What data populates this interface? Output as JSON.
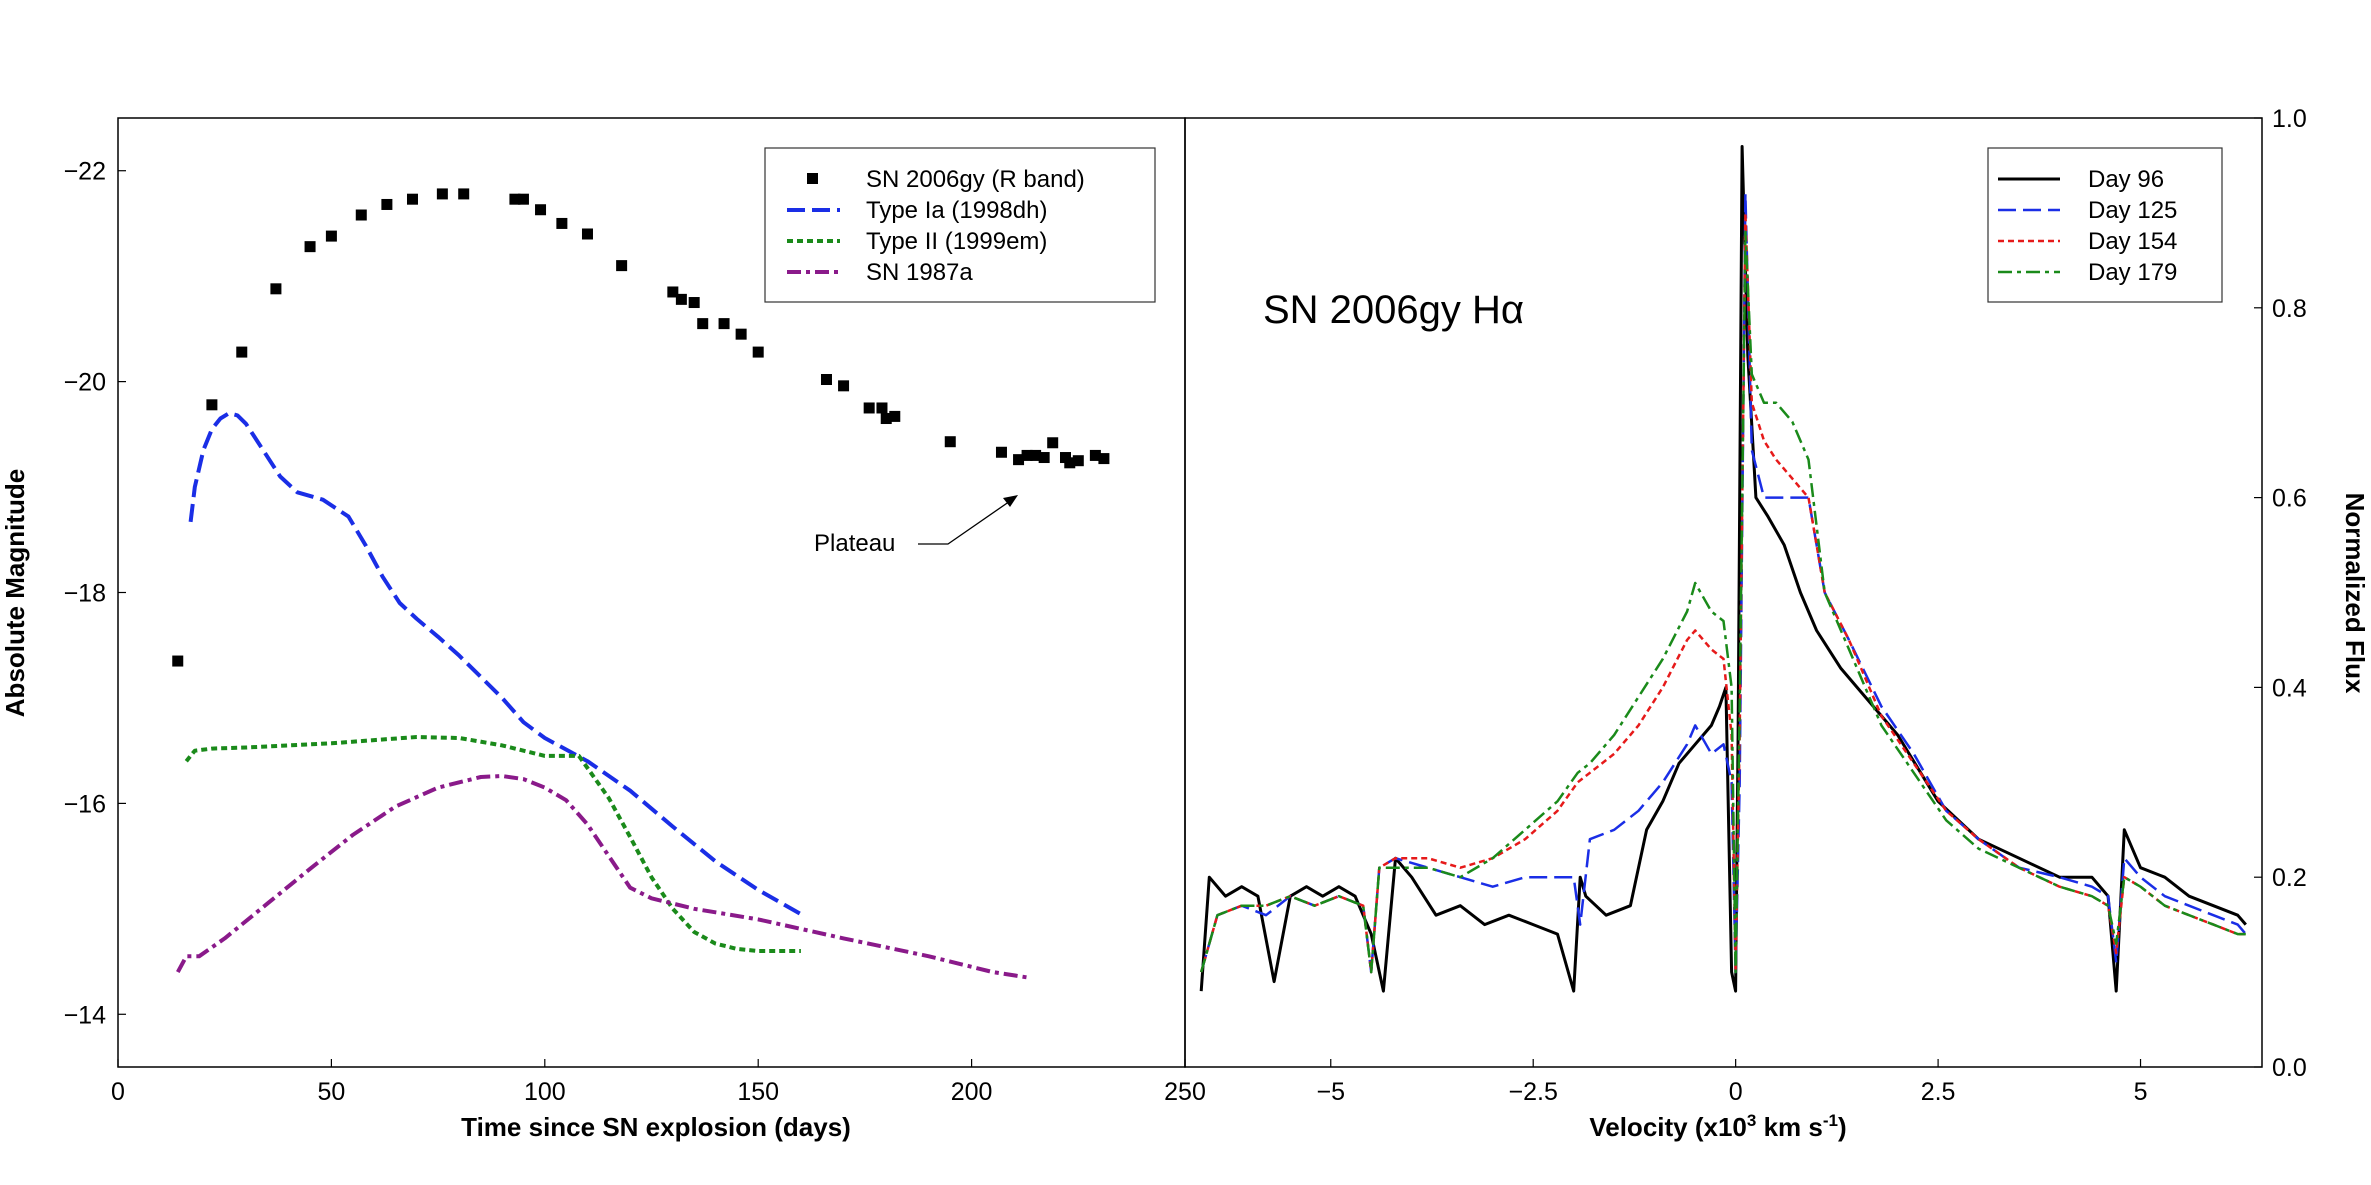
{
  "chart_data": [
    {
      "type": "scatter",
      "xlabel": "Time since SN explosion (days)",
      "ylabel": "Absolute Magnitude",
      "xlim": [
        0,
        250
      ],
      "ylim": [
        -13.5,
        -22.5
      ],
      "y_inverted": true,
      "x_ticks": [
        "0",
        "50",
        "100",
        "150",
        "200",
        "250"
      ],
      "y_ticks": [
        "−22",
        "−20",
        "−18",
        "−16",
        "−14"
      ],
      "legend_position": "top-right",
      "annotation": "Plateau",
      "series": [
        {
          "name": "SN 2006gy  (R band)",
          "style": "markers",
          "color": "#000000",
          "x": [
            14,
            22,
            29,
            37,
            45,
            50,
            57,
            63,
            69,
            76,
            81,
            93,
            95,
            99,
            104,
            110,
            118,
            130,
            132,
            135,
            137,
            142,
            146,
            150,
            166,
            170,
            176,
            179,
            180,
            182,
            195,
            207,
            211,
            213,
            215,
            217,
            219,
            222,
            223,
            225,
            229,
            231
          ],
          "y": [
            -17.35,
            -19.78,
            -20.28,
            -20.88,
            -21.28,
            -21.38,
            -21.58,
            -21.68,
            -21.73,
            -21.78,
            -21.78,
            -21.73,
            -21.73,
            -21.63,
            -21.5,
            -21.4,
            -21.1,
            -20.85,
            -20.78,
            -20.75,
            -20.55,
            -20.55,
            -20.45,
            -20.28,
            -20.02,
            -19.96,
            -19.75,
            -19.75,
            -19.65,
            -19.67,
            -19.43,
            -19.33,
            -19.26,
            -19.3,
            -19.3,
            -19.28,
            -19.42,
            -19.28,
            -19.23,
            -19.25,
            -19.3,
            -19.27
          ]
        },
        {
          "name": "Type Ia (1998dh)",
          "style": "dashed",
          "color": "#1a2ee6",
          "x": [
            17,
            18,
            20,
            22,
            24,
            26,
            28,
            30,
            34,
            38,
            42,
            48,
            54,
            58,
            62,
            66,
            70,
            75,
            80,
            85,
            90,
            95,
            100,
            110,
            120,
            130,
            140,
            150,
            160
          ],
          "y": [
            -18.67,
            -19.0,
            -19.35,
            -19.55,
            -19.65,
            -19.7,
            -19.68,
            -19.6,
            -19.35,
            -19.1,
            -18.95,
            -18.88,
            -18.72,
            -18.45,
            -18.15,
            -17.9,
            -17.75,
            -17.58,
            -17.4,
            -17.2,
            -17.0,
            -16.77,
            -16.62,
            -16.4,
            -16.12,
            -15.78,
            -15.45,
            -15.18,
            -14.95
          ]
        },
        {
          "name": "Type II (1999em)",
          "style": "dotted",
          "color": "#1a8a1a",
          "x": [
            16,
            18,
            22,
            30,
            40,
            50,
            60,
            70,
            80,
            90,
            100,
            108,
            115,
            120,
            125,
            130,
            135,
            140,
            145,
            150,
            160
          ],
          "y": [
            -16.4,
            -16.5,
            -16.52,
            -16.53,
            -16.55,
            -16.57,
            -16.6,
            -16.63,
            -16.62,
            -16.55,
            -16.45,
            -16.45,
            -16.05,
            -15.68,
            -15.3,
            -15.0,
            -14.78,
            -14.67,
            -14.62,
            -14.6,
            -14.6
          ]
        },
        {
          "name": "SN 1987a",
          "style": "dashdot",
          "color": "#8a1a8a",
          "x": [
            14,
            16,
            19,
            25,
            35,
            45,
            55,
            65,
            75,
            85,
            90,
            95,
            100,
            105,
            110,
            115,
            120,
            125,
            135,
            150,
            170,
            190,
            205,
            213
          ],
          "y": [
            -14.4,
            -14.55,
            -14.55,
            -14.72,
            -15.05,
            -15.38,
            -15.7,
            -15.97,
            -16.15,
            -16.25,
            -16.26,
            -16.23,
            -16.15,
            -16.03,
            -15.8,
            -15.5,
            -15.2,
            -15.1,
            -15.0,
            -14.9,
            -14.72,
            -14.55,
            -14.4,
            -14.35
          ]
        }
      ]
    },
    {
      "type": "line",
      "title": "SN 2006gy Hα",
      "xlabel_parts": [
        "Velocity (x10",
        "3",
        " km s",
        "-1",
        ")"
      ],
      "ylabel": "Normalized Flux",
      "y_axis_side": "right",
      "xlim": [
        -6.8,
        6.5
      ],
      "ylim": [
        0.0,
        1.0
      ],
      "x_ticks": [
        "−5",
        "−2.5",
        "0",
        "2.5",
        "5"
      ],
      "y_ticks": [
        "0.0",
        "0.2",
        "0.4",
        "0.6",
        "0.8",
        "1.0"
      ],
      "legend_position": "top-right",
      "series": [
        {
          "name": "Day 96",
          "style": "solid",
          "color": "#000000",
          "x": [
            -6.6,
            -6.5,
            -6.3,
            -6.1,
            -5.9,
            -5.7,
            -5.5,
            -5.3,
            -5.1,
            -4.9,
            -4.7,
            -4.5,
            -4.35,
            -4.2,
            -4.0,
            -3.7,
            -3.4,
            -3.1,
            -2.8,
            -2.5,
            -2.2,
            -2.0,
            -1.92,
            -1.85,
            -1.6,
            -1.3,
            -1.1,
            -0.9,
            -0.7,
            -0.5,
            -0.4,
            -0.3,
            -0.2,
            -0.12,
            -0.05,
            0.0,
            0.03,
            0.08,
            0.15,
            0.25,
            0.4,
            0.6,
            0.8,
            1.0,
            1.3,
            1.6,
            2.0,
            2.5,
            3.0,
            3.5,
            4.0,
            4.4,
            4.6,
            4.7,
            4.8,
            5.0,
            5.3,
            5.6,
            5.9,
            6.2,
            6.3
          ],
          "y": [
            0.08,
            0.2,
            0.18,
            0.19,
            0.18,
            0.09,
            0.18,
            0.19,
            0.18,
            0.19,
            0.18,
            0.14,
            0.08,
            0.22,
            0.2,
            0.16,
            0.17,
            0.15,
            0.16,
            0.15,
            0.14,
            0.08,
            0.2,
            0.18,
            0.16,
            0.17,
            0.25,
            0.28,
            0.32,
            0.34,
            0.35,
            0.36,
            0.38,
            0.4,
            0.1,
            0.08,
            0.35,
            0.97,
            0.75,
            0.6,
            0.58,
            0.55,
            0.5,
            0.46,
            0.42,
            0.39,
            0.35,
            0.28,
            0.24,
            0.22,
            0.2,
            0.2,
            0.18,
            0.08,
            0.25,
            0.21,
            0.2,
            0.18,
            0.17,
            0.16,
            0.15
          ]
        },
        {
          "name": "Day 125",
          "style": "dashed",
          "color": "#1a2ee6",
          "x": [
            -6.6,
            -6.4,
            -6.1,
            -5.8,
            -5.5,
            -5.2,
            -4.9,
            -4.6,
            -4.5,
            -4.4,
            -4.2,
            -3.8,
            -3.4,
            -3.0,
            -2.6,
            -2.2,
            -2.0,
            -1.92,
            -1.8,
            -1.5,
            -1.2,
            -0.9,
            -0.6,
            -0.5,
            -0.3,
            -0.15,
            -0.05,
            0.0,
            0.05,
            0.12,
            0.2,
            0.35,
            0.5,
            0.7,
            0.9,
            1.1,
            1.4,
            1.8,
            2.2,
            2.6,
            3.0,
            3.5,
            4.0,
            4.4,
            4.6,
            4.7,
            4.8,
            5.0,
            5.3,
            5.6,
            5.9,
            6.2,
            6.3
          ],
          "y": [
            0.1,
            0.16,
            0.17,
            0.16,
            0.18,
            0.17,
            0.18,
            0.17,
            0.1,
            0.21,
            0.22,
            0.21,
            0.2,
            0.19,
            0.2,
            0.2,
            0.2,
            0.15,
            0.24,
            0.25,
            0.27,
            0.3,
            0.34,
            0.36,
            0.33,
            0.34,
            0.3,
            0.1,
            0.3,
            0.92,
            0.65,
            0.6,
            0.6,
            0.6,
            0.6,
            0.5,
            0.45,
            0.38,
            0.33,
            0.27,
            0.24,
            0.21,
            0.2,
            0.19,
            0.18,
            0.11,
            0.22,
            0.2,
            0.18,
            0.17,
            0.16,
            0.15,
            0.14
          ]
        },
        {
          "name": "Day 154",
          "style": "dotted",
          "color": "#e61a1a",
          "x": [
            -6.6,
            -6.4,
            -6.1,
            -5.8,
            -5.5,
            -5.2,
            -4.9,
            -4.6,
            -4.5,
            -4.4,
            -4.2,
            -3.8,
            -3.4,
            -3.0,
            -2.6,
            -2.2,
            -1.95,
            -1.8,
            -1.5,
            -1.2,
            -0.9,
            -0.6,
            -0.5,
            -0.3,
            -0.15,
            -0.05,
            0.0,
            0.05,
            0.12,
            0.2,
            0.35,
            0.5,
            0.7,
            0.9,
            1.1,
            1.4,
            1.8,
            2.2,
            2.6,
            3.0,
            3.5,
            4.0,
            4.4,
            4.6,
            4.7,
            4.8,
            5.0,
            5.3,
            5.6,
            5.9,
            6.2,
            6.3
          ],
          "y": [
            0.1,
            0.16,
            0.17,
            0.17,
            0.18,
            0.17,
            0.18,
            0.17,
            0.1,
            0.21,
            0.22,
            0.22,
            0.21,
            0.22,
            0.24,
            0.27,
            0.3,
            0.31,
            0.33,
            0.36,
            0.4,
            0.45,
            0.46,
            0.44,
            0.43,
            0.35,
            0.1,
            0.35,
            0.9,
            0.7,
            0.66,
            0.64,
            0.62,
            0.6,
            0.5,
            0.45,
            0.37,
            0.32,
            0.27,
            0.24,
            0.21,
            0.19,
            0.18,
            0.17,
            0.12,
            0.2,
            0.19,
            0.17,
            0.16,
            0.15,
            0.14,
            0.14
          ]
        },
        {
          "name": "Day 179",
          "style": "dashdot",
          "color": "#1a8a1a",
          "x": [
            -6.6,
            -6.4,
            -6.1,
            -5.8,
            -5.5,
            -5.2,
            -4.9,
            -4.6,
            -4.5,
            -4.4,
            -4.2,
            -3.8,
            -3.4,
            -3.0,
            -2.6,
            -2.2,
            -1.95,
            -1.8,
            -1.5,
            -1.2,
            -0.9,
            -0.6,
            -0.5,
            -0.3,
            -0.15,
            -0.05,
            0.0,
            0.05,
            0.12,
            0.2,
            0.35,
            0.5,
            0.7,
            0.9,
            1.1,
            1.4,
            1.8,
            2.2,
            2.6,
            3.0,
            3.5,
            4.0,
            4.4,
            4.6,
            4.7,
            4.8,
            5.0,
            5.3,
            5.6,
            5.9,
            6.2,
            6.3
          ],
          "y": [
            0.1,
            0.16,
            0.17,
            0.17,
            0.18,
            0.17,
            0.18,
            0.17,
            0.1,
            0.21,
            0.21,
            0.21,
            0.2,
            0.22,
            0.25,
            0.28,
            0.31,
            0.32,
            0.35,
            0.39,
            0.43,
            0.48,
            0.51,
            0.48,
            0.47,
            0.4,
            0.1,
            0.38,
            0.88,
            0.73,
            0.7,
            0.7,
            0.68,
            0.64,
            0.5,
            0.44,
            0.36,
            0.31,
            0.26,
            0.23,
            0.21,
            0.19,
            0.18,
            0.17,
            0.13,
            0.2,
            0.19,
            0.17,
            0.16,
            0.15,
            0.14,
            0.14
          ]
        }
      ]
    }
  ]
}
